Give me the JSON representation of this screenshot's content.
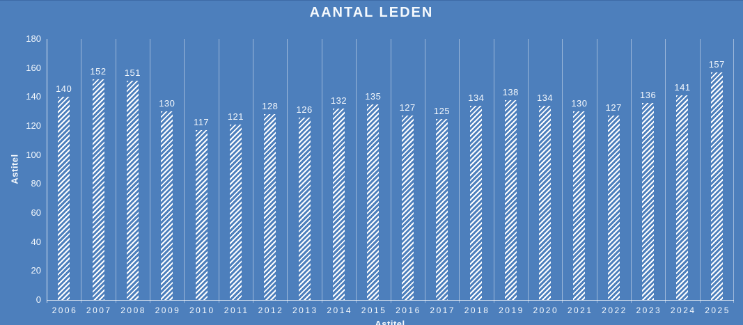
{
  "chart_data": {
    "type": "bar",
    "title": "AANTAL LEDEN",
    "categories": [
      "2006",
      "2007",
      "2008",
      "2009",
      "2010",
      "2011",
      "2012",
      "2013",
      "2014",
      "2015",
      "2016",
      "2017",
      "2018",
      "2019",
      "2020",
      "2021",
      "2022",
      "2023",
      "2024",
      "2025"
    ],
    "values": [
      140,
      152,
      151,
      130,
      117,
      121,
      128,
      126,
      132,
      135,
      127,
      125,
      134,
      138,
      134,
      130,
      127,
      136,
      141,
      157
    ],
    "data_labels_visible": true,
    "xlabel": "Astitel",
    "ylabel": "Astitel",
    "ylim": [
      0,
      180
    ],
    "yticks": [
      "0",
      "20",
      "40",
      "60",
      "80",
      "100",
      "120",
      "140",
      "160",
      "180"
    ],
    "legend": "none",
    "gridlines": "vertical-category-only",
    "bar_fill": "white-upward-diagonal-hatch"
  },
  "colors": {
    "background": "#4d7fbc",
    "top_border": "#3e6aa6",
    "text": "#f5f9fd",
    "gridline": "#ffffff73",
    "axis_line": "#ffffffc9",
    "bar_stripe": "#ffffff"
  }
}
